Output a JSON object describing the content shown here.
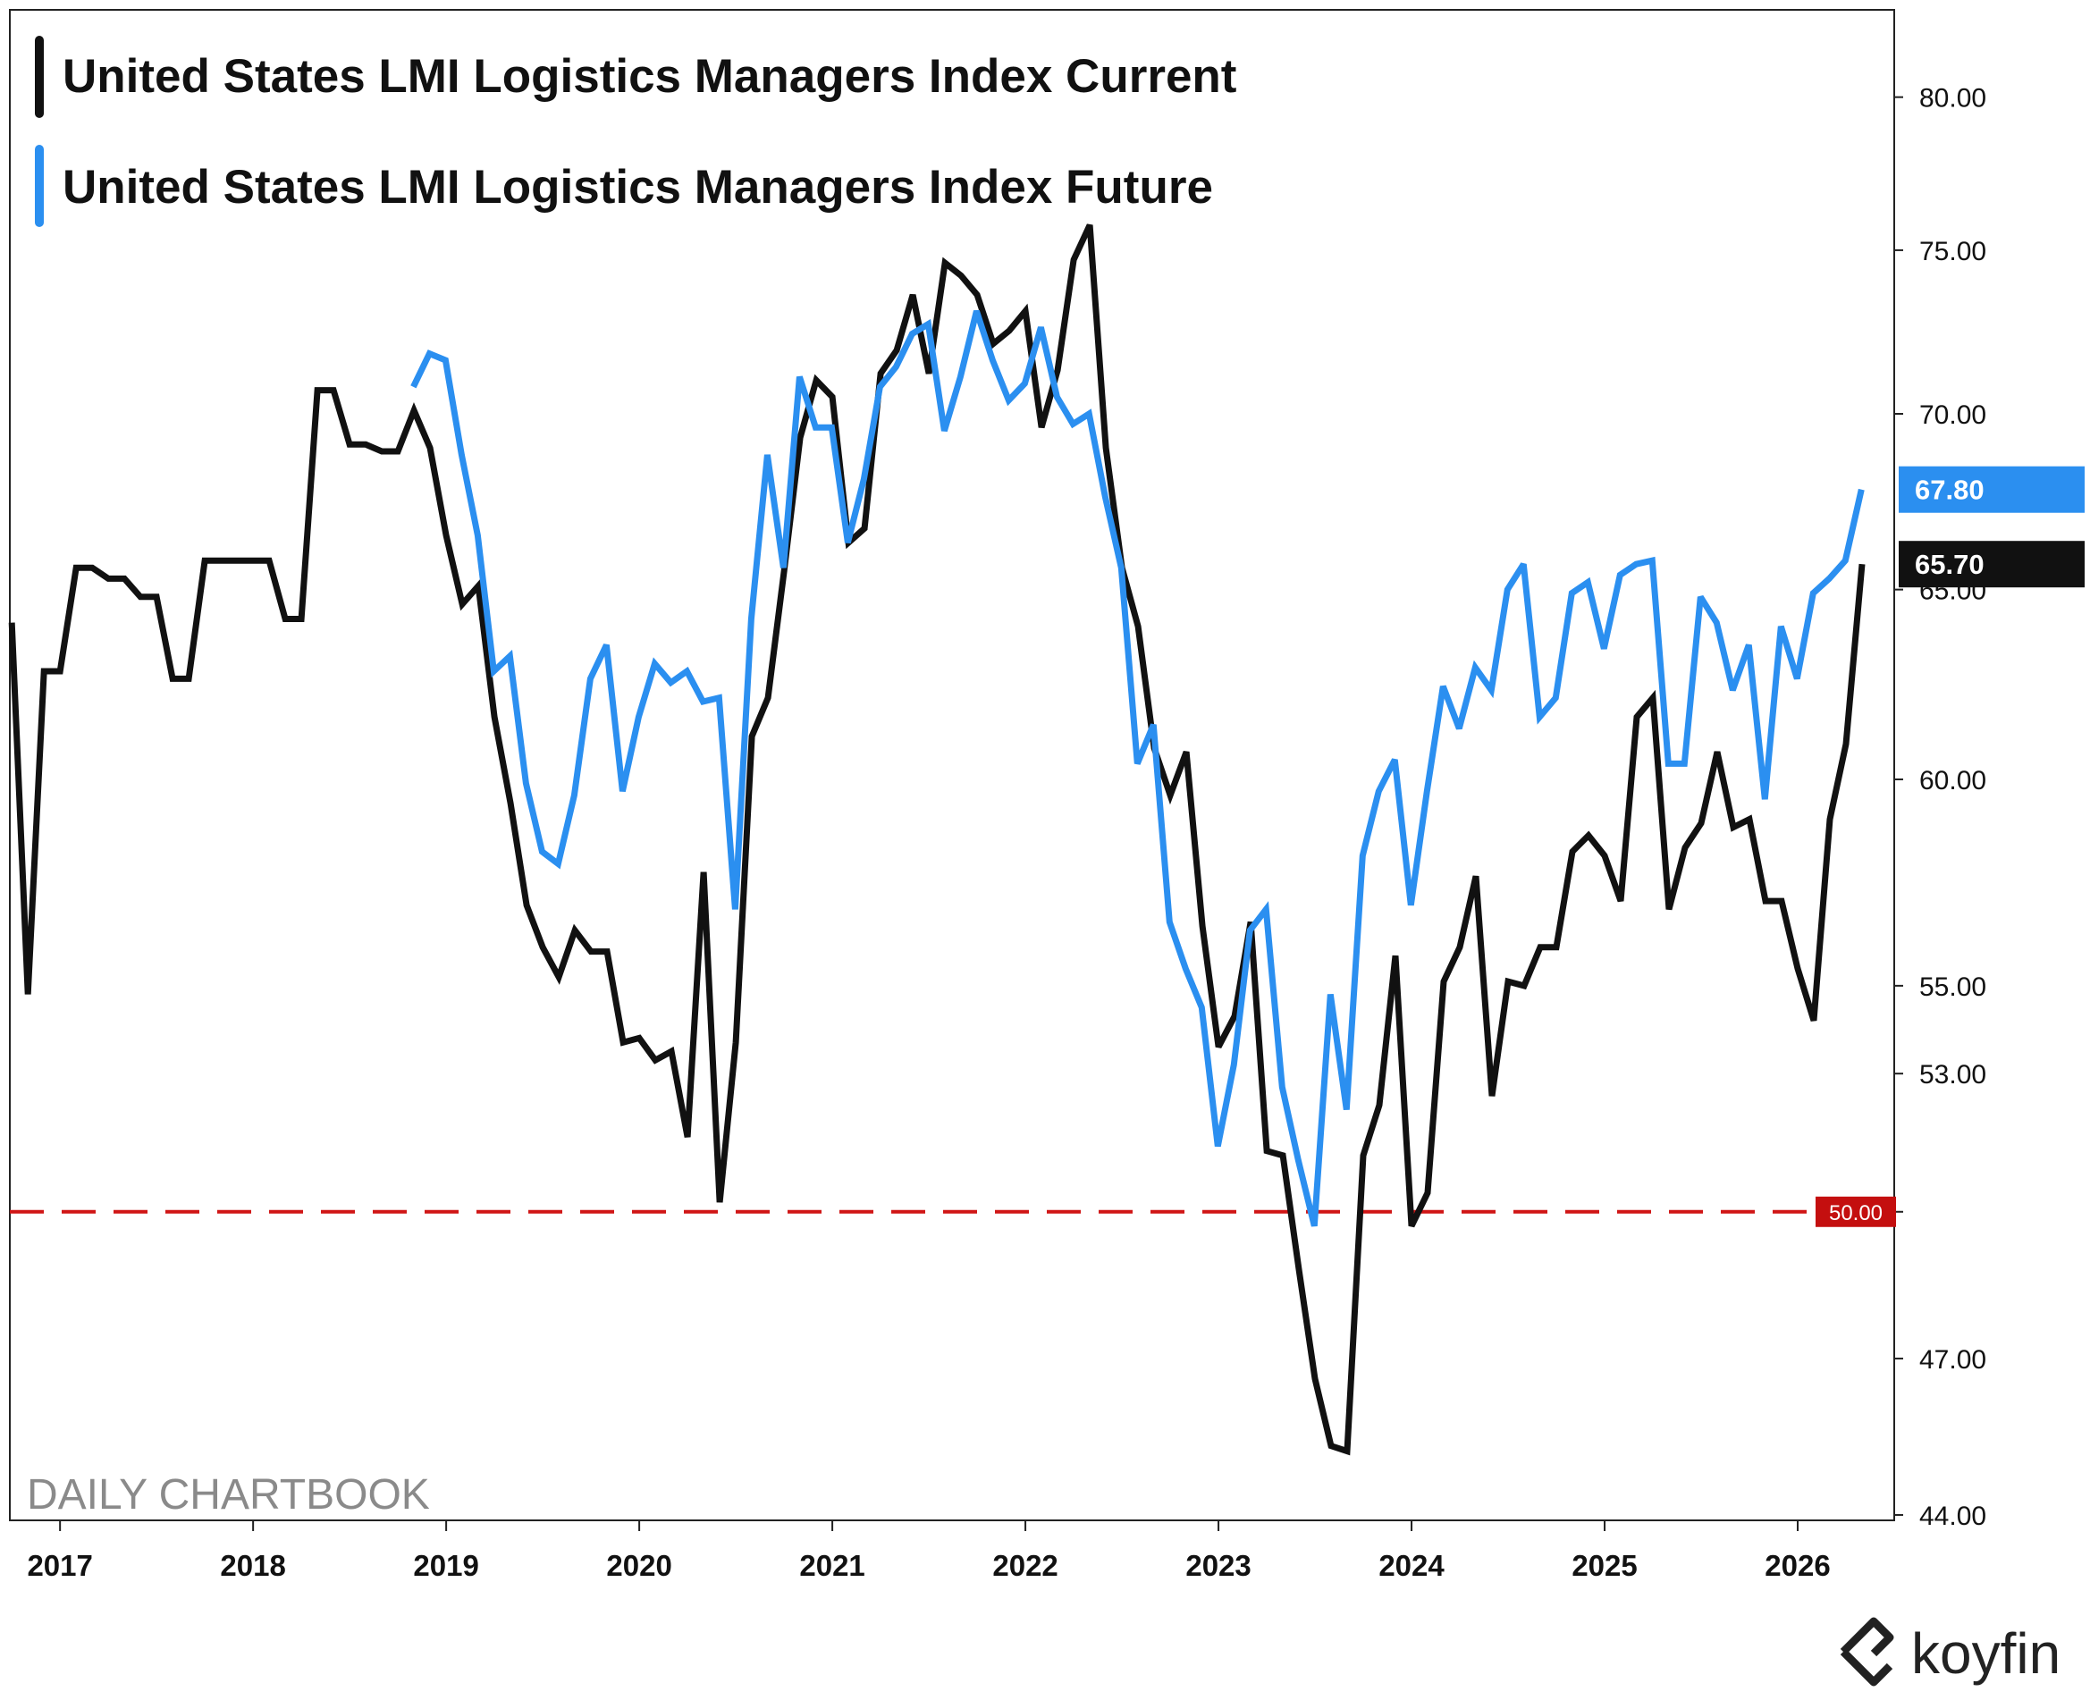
{
  "chart_data": {
    "type": "line",
    "legend": [
      {
        "name": "United States LMI Logistics Managers Index Current",
        "color": "#111111"
      },
      {
        "name": "United States LMI Logistics Managers Index Future",
        "color": "#2b8ff0"
      }
    ],
    "x_ticks": [
      "2017",
      "2018",
      "2019",
      "2020",
      "2021",
      "2022",
      "2023",
      "2024",
      "2025",
      "2026"
    ],
    "y_ticks": [
      "80.00",
      "75.00",
      "70.00",
      "60.00",
      "55.00",
      "53.00",
      "50.00",
      "47.00",
      "44.00"
    ],
    "y_tick_values": [
      80,
      75,
      70,
      60,
      55,
      53,
      50,
      47,
      44
    ],
    "y_tick_65_label": "65.00",
    "xlim": [
      2016.74,
      2026.5
    ],
    "ylim": [
      43.9,
      83.0
    ],
    "y_scale": "log",
    "reference_line": {
      "value": 50,
      "label": "50.00",
      "color": "#cc1111"
    },
    "last_values": [
      {
        "label": "65.70",
        "value": 65.7,
        "color": "#111111"
      },
      {
        "label": "67.80",
        "value": 67.8,
        "color": "#2b8ff0"
      }
    ],
    "series": [
      {
        "name": "United States LMI Logistics Managers Index Current",
        "color": "#111111",
        "start": 2016.75,
        "step": 0.0833333,
        "values": [
          64.1,
          54.8,
          62.8,
          62.8,
          65.6,
          65.6,
          65.3,
          65.3,
          64.8,
          64.8,
          62.6,
          62.6,
          65.8,
          65.8,
          65.8,
          65.8,
          65.8,
          64.2,
          64.2,
          70.7,
          70.7,
          69.1,
          69.1,
          68.9,
          68.9,
          70.1,
          69.0,
          66.5,
          64.6,
          65.1,
          61.6,
          59.4,
          56.9,
          55.9,
          55.2,
          56.3,
          55.8,
          55.8,
          53.7,
          53.8,
          53.3,
          53.5,
          51.6,
          57.7,
          50.2,
          53.7,
          61.1,
          62.1,
          65.5,
          69.3,
          71.0,
          70.5,
          66.3,
          66.7,
          71.2,
          71.9,
          73.6,
          71.2,
          74.6,
          74.2,
          73.6,
          72.1,
          72.5,
          73.1,
          69.6,
          71.3,
          74.7,
          75.8,
          69.0,
          65.6,
          64.0,
          60.8,
          59.6,
          60.7,
          56.4,
          53.6,
          54.3,
          56.5,
          51.3,
          51.2,
          48.8,
          46.6,
          45.3,
          45.2,
          51.2,
          52.3,
          55.7,
          49.7,
          50.4,
          55.1,
          55.9,
          57.6,
          52.5,
          55.1,
          55.0,
          55.9,
          55.9,
          58.2,
          58.6,
          58.1,
          57.0,
          61.6,
          62.1,
          56.8,
          58.3,
          58.9,
          60.7,
          58.8,
          59.0,
          57.0,
          57.0,
          55.4,
          54.2,
          59.0,
          60.9,
          65.7
        ]
      },
      {
        "name": "United States LMI Logistics Managers Index Future",
        "color": "#2b8ff0",
        "start": 2018.83,
        "step": 0.0833333,
        "values": [
          70.8,
          71.8,
          71.6,
          68.8,
          66.5,
          62.8,
          63.2,
          59.9,
          58.2,
          57.9,
          59.6,
          62.6,
          63.5,
          59.7,
          61.6,
          63.0,
          62.5,
          62.8,
          62.0,
          62.1,
          56.8,
          64.2,
          68.8,
          65.6,
          71.1,
          69.6,
          69.6,
          66.3,
          68.1,
          70.8,
          71.4,
          72.4,
          72.7,
          69.5,
          71.1,
          73.1,
          71.6,
          70.4,
          70.9,
          72.6,
          70.5,
          69.7,
          70.0,
          67.6,
          65.6,
          60.4,
          61.4,
          56.5,
          55.4,
          54.5,
          51.4,
          53.2,
          56.3,
          56.8,
          52.7,
          51.1,
          49.7,
          54.8,
          52.2,
          58.1,
          59.7,
          60.5,
          56.9,
          59.7,
          62.4,
          61.3,
          62.9,
          62.3,
          65.0,
          65.7,
          61.6,
          62.1,
          64.9,
          65.2,
          63.4,
          65.4,
          65.7,
          65.8,
          60.4,
          60.4,
          64.8,
          64.1,
          62.3,
          63.5,
          59.5,
          64.0,
          62.6,
          64.9,
          65.3,
          65.8,
          67.8
        ]
      }
    ]
  },
  "watermark": "DAILY CHARTBOOK",
  "brand": "koyfin"
}
